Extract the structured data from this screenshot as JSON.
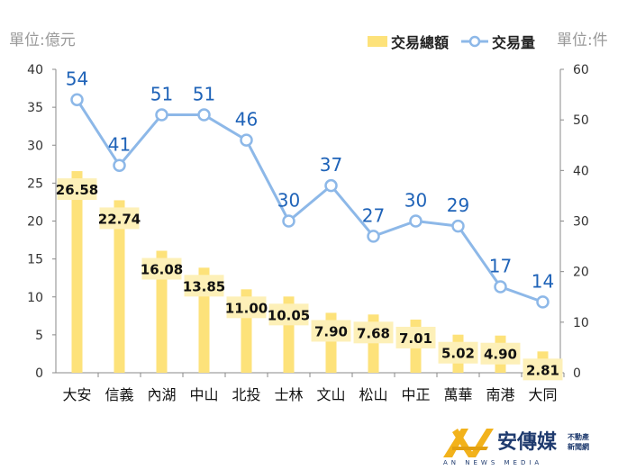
{
  "chart_data": {
    "type": "bar+line",
    "categories": [
      "大安",
      "信義",
      "內湖",
      "中山",
      "北投",
      "士林",
      "文山",
      "松山",
      "中正",
      "萬華",
      "南港",
      "大同"
    ],
    "series": [
      {
        "name": "交易總額",
        "type": "bar",
        "axis": "left",
        "color": "#fde27a",
        "values": [
          26.58,
          22.74,
          16.08,
          13.85,
          11.0,
          10.05,
          7.9,
          7.68,
          7.01,
          5.02,
          4.9,
          2.81
        ],
        "labels": [
          "26.58",
          "22.74",
          "16.08",
          "13.85",
          "11.00",
          "10.05",
          "7.90",
          "7.68",
          "7.01",
          "5.02",
          "4.90",
          "2.81"
        ]
      },
      {
        "name": "交易量",
        "type": "line",
        "axis": "right",
        "color": "#8db8e8",
        "values": [
          54,
          41,
          51,
          51,
          46,
          30,
          37,
          27,
          30,
          29,
          17,
          14
        ]
      }
    ],
    "ylabel_left": "單位:億元",
    "ylabel_right": "單位:件",
    "ylim_left": [
      0,
      40
    ],
    "ylim_right": [
      0,
      60
    ],
    "yticks_left": [
      0,
      5,
      10,
      15,
      20,
      25,
      30,
      35,
      40
    ],
    "yticks_right": [
      0,
      10,
      20,
      30,
      40,
      50,
      60
    ],
    "legend": "top-right",
    "grid": false
  },
  "logo": {
    "name": "安傳媒",
    "sub1": "不動產",
    "sub2": "新聞網",
    "en": "AN NEWS MEDIA"
  }
}
